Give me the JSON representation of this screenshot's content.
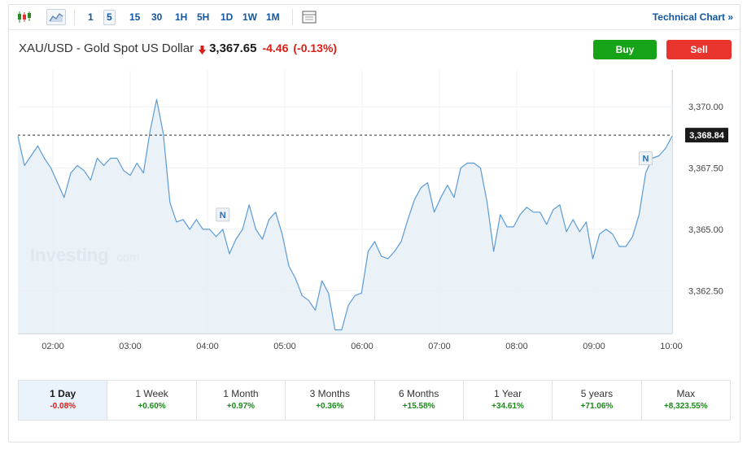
{
  "toolbar": {
    "timeframes": [
      "1",
      "5",
      "15",
      "30",
      "1H",
      "5H",
      "1D",
      "1W",
      "1M"
    ],
    "active_timeframe": "5",
    "technical_chart": "Technical Chart »"
  },
  "instrument": {
    "name": "XAU/USD - Gold Spot US Dollar",
    "price": "3,367.65",
    "change": "-4.46",
    "change_pct": "(-0.13%)"
  },
  "actions": {
    "buy": "Buy",
    "sell": "Sell"
  },
  "watermark": {
    "main": "Investing",
    "suffix": ".com"
  },
  "colors": {
    "line": "#5b9bd5",
    "area": "#e6eef6",
    "buy": "#17a317",
    "sell": "#e8342c",
    "up": "#1a8a1a",
    "down": "#d91e18",
    "link": "#1256a0"
  },
  "chart_data": {
    "type": "area",
    "x_ticks": [
      "02:00",
      "03:00",
      "04:00",
      "05:00",
      "06:00",
      "07:00",
      "08:00",
      "09:00",
      "10:00"
    ],
    "y_ticks": [
      "3,362.50",
      "3,365.00",
      "3,367.50",
      "3,370.00"
    ],
    "ylim": [
      3360.75,
      3371.5
    ],
    "current_value": 3368.84,
    "current_label": "3,368.84",
    "grid": true,
    "series": [
      {
        "values": [
          3368.8,
          3367.6,
          3368.0,
          3368.4,
          3367.9,
          3367.5,
          3366.9,
          3366.3,
          3367.3,
          3367.6,
          3367.4,
          3367.0,
          3367.9,
          3367.6,
          3367.9,
          3367.9,
          3367.4,
          3367.2,
          3367.7,
          3367.3,
          3369.0,
          3370.3,
          3368.9,
          3366.1,
          3365.3,
          3365.4,
          3365.0,
          3365.4,
          3365.0,
          3365.0,
          3364.7,
          3365.0,
          3364.0,
          3364.6,
          3365.0,
          3366.0,
          3365.0,
          3364.6,
          3365.4,
          3365.7,
          3364.8,
          3363.5,
          3363.0,
          3362.3,
          3362.1,
          3361.7,
          3362.9,
          3362.4,
          3360.9,
          3360.9,
          3361.9,
          3362.3,
          3362.4,
          3364.1,
          3364.5,
          3363.9,
          3363.8,
          3364.1,
          3364.5,
          3365.4,
          3366.2,
          3366.7,
          3366.9,
          3365.7,
          3366.3,
          3366.8,
          3366.3,
          3367.5,
          3367.7,
          3367.7,
          3367.5,
          3366.1,
          3364.1,
          3365.6,
          3365.1,
          3365.1,
          3365.6,
          3365.9,
          3365.7,
          3365.7,
          3365.2,
          3365.8,
          3366.0,
          3364.9,
          3365.4,
          3364.9,
          3365.3,
          3363.8,
          3364.8,
          3365.0,
          3364.8,
          3364.3,
          3364.3,
          3364.7,
          3365.6,
          3367.3,
          3367.9,
          3368.0,
          3368.3,
          3368.8
        ]
      }
    ],
    "markers": [
      {
        "label": "N",
        "index": 31
      },
      {
        "label": "N",
        "index": 95
      }
    ]
  },
  "periods": [
    {
      "label": "1 Day",
      "value": "-0.08%",
      "dir": "neg",
      "active": true
    },
    {
      "label": "1 Week",
      "value": "+0.60%",
      "dir": "pos"
    },
    {
      "label": "1 Month",
      "value": "+0.97%",
      "dir": "pos"
    },
    {
      "label": "3 Months",
      "value": "+0.36%",
      "dir": "pos"
    },
    {
      "label": "6 Months",
      "value": "+15.58%",
      "dir": "pos"
    },
    {
      "label": "1 Year",
      "value": "+34.61%",
      "dir": "pos"
    },
    {
      "label": "5 years",
      "value": "+71.06%",
      "dir": "pos"
    },
    {
      "label": "Max",
      "value": "+8,323.55%",
      "dir": "pos"
    }
  ]
}
